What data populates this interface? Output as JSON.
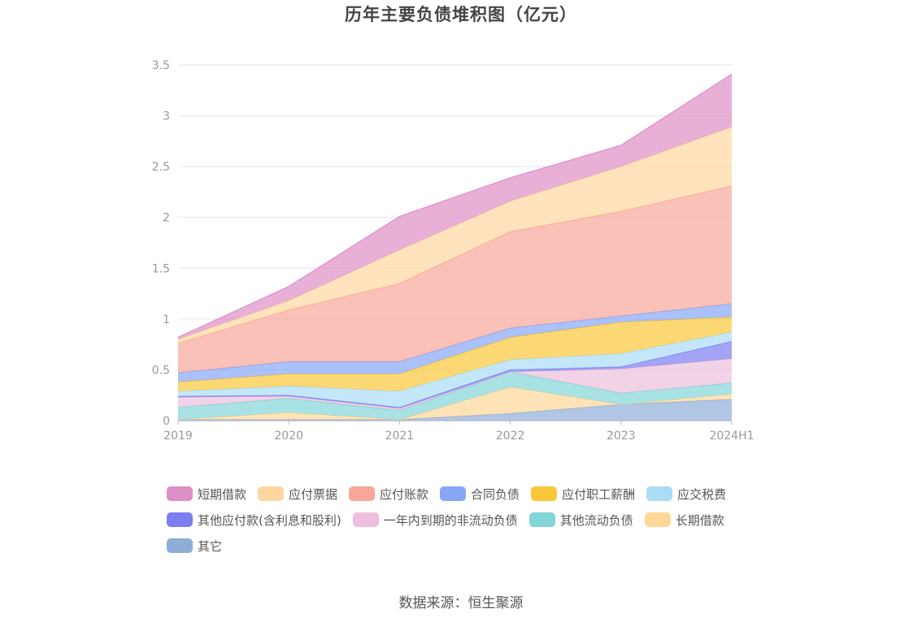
{
  "chart_data": {
    "type": "area",
    "stacked": true,
    "title": "历年主要负债堆积图（亿元）",
    "categories": [
      "2019",
      "2020",
      "2021",
      "2022",
      "2023",
      "2024H1"
    ],
    "ylim": [
      0,
      3.5
    ],
    "yticks": [
      "0",
      "0.5",
      "1",
      "1.5",
      "2",
      "2.5",
      "3",
      "3.5"
    ],
    "ytick_values": [
      0,
      0.5,
      1,
      1.5,
      2,
      2.5,
      3,
      3.5
    ],
    "grid": true,
    "legend_position": "bottom",
    "series": [
      {
        "name": "其它",
        "color": "#8eaed8",
        "values": [
          0.01,
          0.01,
          0.01,
          0.07,
          0.16,
          0.21
        ]
      },
      {
        "name": "长期借款",
        "color": "#fdd798",
        "values": [
          0.0,
          0.07,
          0.0,
          0.26,
          0.0,
          0.05
        ]
      },
      {
        "name": "其他流动负债",
        "color": "#84d5d8",
        "values": [
          0.12,
          0.14,
          0.09,
          0.15,
          0.11,
          0.11
        ]
      },
      {
        "name": "一年内到期的非流动负债",
        "color": "#edbfdc",
        "values": [
          0.1,
          0.02,
          0.02,
          0.0,
          0.24,
          0.24
        ]
      },
      {
        "name": "其他应付款(含利息和股利)",
        "color": "#7d7ef0",
        "values": [
          0.01,
          0.01,
          0.01,
          0.02,
          0.02,
          0.17
        ]
      },
      {
        "name": "应交税费",
        "color": "#a9ddf6",
        "values": [
          0.05,
          0.09,
          0.16,
          0.1,
          0.13,
          0.09
        ]
      },
      {
        "name": "应付职工薪酬",
        "color": "#fbc739",
        "values": [
          0.09,
          0.12,
          0.17,
          0.22,
          0.31,
          0.15
        ]
      },
      {
        "name": "合同负债",
        "color": "#87a6f6",
        "values": [
          0.09,
          0.12,
          0.12,
          0.09,
          0.06,
          0.13
        ]
      },
      {
        "name": "应付账款",
        "color": "#f8a69b",
        "values": [
          0.29,
          0.51,
          0.77,
          0.95,
          1.03,
          1.16
        ]
      },
      {
        "name": "应付票据",
        "color": "#fdd79f",
        "values": [
          0.04,
          0.09,
          0.33,
          0.3,
          0.44,
          0.58
        ]
      },
      {
        "name": "短期借款",
        "color": "#de8ec6",
        "values": [
          0.02,
          0.14,
          0.33,
          0.23,
          0.21,
          0.52
        ]
      }
    ]
  },
  "legend_order": [
    "短期借款",
    "应付票据",
    "应付账款",
    "合同负债",
    "应付职工薪酬",
    "应交税费",
    "其他应付款(含利息和股利)",
    "一年内到期的非流动负债",
    "其他流动负债",
    "长期借款",
    "其它"
  ],
  "source_text": "数据来源：恒生聚源"
}
